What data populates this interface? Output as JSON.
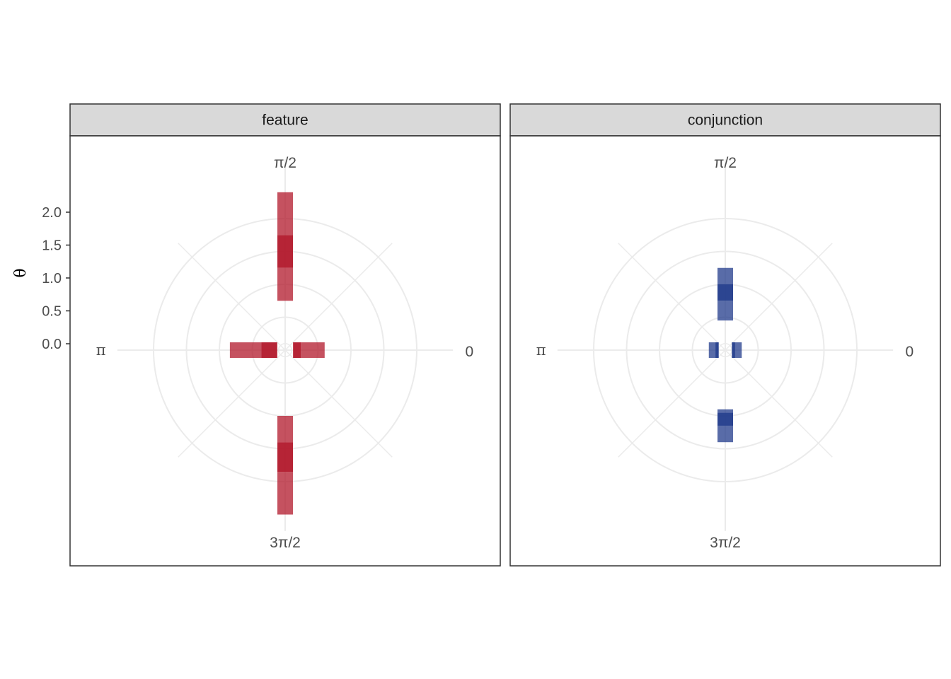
{
  "chart_data": {
    "type": "heatmap",
    "coordinate_system": "polar",
    "ylabel": "θ",
    "y_ticks": [
      "0.0",
      "0.5",
      "1.0",
      "1.5",
      "2.0"
    ],
    "y_tick_values": [
      0.0,
      0.5,
      1.0,
      1.5,
      2.0
    ],
    "angle_labels": [
      "0",
      "π/2",
      "π",
      "3π/2"
    ],
    "angle_label_values": [
      0,
      1.5708,
      3.1416,
      4.7124
    ],
    "rings": [
      0.5,
      1.0,
      1.5,
      2.0
    ],
    "grid": true,
    "facets": [
      {
        "title": "feature",
        "color": "#B2182B",
        "tiles": [
          {
            "angle": 1.5708,
            "r0": 0.75,
            "r1": 1.25,
            "opacity": 0.75
          },
          {
            "angle": 1.5708,
            "r0": 1.25,
            "r1": 1.75,
            "opacity": 0.95
          },
          {
            "angle": 1.5708,
            "r0": 1.75,
            "r1": 2.4,
            "opacity": 0.75
          },
          {
            "angle": 4.7124,
            "r0": 1.0,
            "r1": 1.4,
            "opacity": 0.75
          },
          {
            "angle": 4.7124,
            "r0": 1.4,
            "r1": 1.85,
            "opacity": 0.95
          },
          {
            "angle": 4.7124,
            "r0": 1.85,
            "r1": 2.5,
            "opacity": 0.75
          },
          {
            "angle": 0,
            "r0": 0.12,
            "r1": 0.24,
            "opacity": 0.95
          },
          {
            "angle": 0,
            "r0": 0.24,
            "r1": 0.6,
            "opacity": 0.75
          },
          {
            "angle": 3.1416,
            "r0": 0.12,
            "r1": 0.36,
            "opacity": 0.95
          },
          {
            "angle": 3.1416,
            "r0": 0.36,
            "r1": 0.84,
            "opacity": 0.75
          }
        ]
      },
      {
        "title": "conjunction",
        "color": "#213B8B",
        "tiles": [
          {
            "angle": 1.5708,
            "r0": 0.45,
            "r1": 0.75,
            "opacity": 0.75
          },
          {
            "angle": 1.5708,
            "r0": 0.75,
            "r1": 1.0,
            "opacity": 0.95
          },
          {
            "angle": 1.5708,
            "r0": 1.0,
            "r1": 1.25,
            "opacity": 0.75
          },
          {
            "angle": 4.7124,
            "r0": 0.9,
            "r1": 0.95,
            "opacity": 0.75
          },
          {
            "angle": 4.7124,
            "r0": 0.95,
            "r1": 1.15,
            "opacity": 0.95
          },
          {
            "angle": 4.7124,
            "r0": 1.15,
            "r1": 1.4,
            "opacity": 0.75
          },
          {
            "angle": 0,
            "r0": 0.1,
            "r1": 0.15,
            "opacity": 0.95
          },
          {
            "angle": 0,
            "r0": 0.15,
            "r1": 0.25,
            "opacity": 0.75
          },
          {
            "angle": 3.1416,
            "r0": 0.1,
            "r1": 0.15,
            "opacity": 0.95
          },
          {
            "angle": 3.1416,
            "r0": 0.15,
            "r1": 0.25,
            "opacity": 0.75
          }
        ]
      }
    ]
  }
}
